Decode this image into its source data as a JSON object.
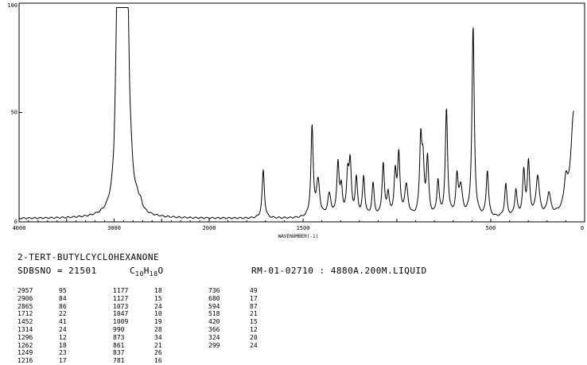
{
  "chart_data": {
    "type": "line",
    "xlabel": "WAVENUMBER(-1)",
    "ylabel": "",
    "x_ticks": [
      "4000",
      "3000",
      "2000",
      "1500",
      "500",
      "0"
    ],
    "y_ticks": [
      "100",
      "50",
      "0"
    ],
    "xlim": [
      4000,
      0
    ],
    "ylim": [
      0,
      100
    ],
    "x_axis": "piecewise linear: 4000-2000 and 2000-0 with different scales",
    "grid": false,
    "legend": "none",
    "peaks": [
      {
        "x": 2957,
        "y": 95
      },
      {
        "x": 2906,
        "y": 84
      },
      {
        "x": 2865,
        "y": 86
      },
      {
        "x": 1712,
        "y": 22
      },
      {
        "x": 1452,
        "y": 41
      },
      {
        "x": 1314,
        "y": 24
      },
      {
        "x": 1296,
        "y": 12
      },
      {
        "x": 1262,
        "y": 18
      },
      {
        "x": 1249,
        "y": 23
      },
      {
        "x": 1216,
        "y": 17
      },
      {
        "x": 1177,
        "y": 18
      },
      {
        "x": 1127,
        "y": 15
      },
      {
        "x": 1073,
        "y": 24
      },
      {
        "x": 1047,
        "y": 10
      },
      {
        "x": 1009,
        "y": 19
      },
      {
        "x": 990,
        "y": 28
      },
      {
        "x": 873,
        "y": 34
      },
      {
        "x": 861,
        "y": 21
      },
      {
        "x": 837,
        "y": 26
      },
      {
        "x": 781,
        "y": 16
      },
      {
        "x": 736,
        "y": 49
      },
      {
        "x": 680,
        "y": 17
      },
      {
        "x": 594,
        "y": 87
      },
      {
        "x": 518,
        "y": 21
      },
      {
        "x": 420,
        "y": 15
      },
      {
        "x": 366,
        "y": 12
      },
      {
        "x": 324,
        "y": 20
      },
      {
        "x": 299,
        "y": 24
      }
    ],
    "extra_shape": [
      {
        "x": 2820,
        "y": 7
      },
      {
        "x": 2760,
        "y": 4
      },
      {
        "x": 2720,
        "y": 3
      },
      {
        "x": 1420,
        "y": 16
      },
      {
        "x": 1360,
        "y": 10
      },
      {
        "x": 950,
        "y": 14
      },
      {
        "x": 660,
        "y": 13
      },
      {
        "x": 250,
        "y": 18
      },
      {
        "x": 190,
        "y": 10
      },
      {
        "x": 100,
        "y": 12
      },
      {
        "x": 60,
        "y": 32
      },
      {
        "x": 25,
        "y": 45
      },
      {
        "x": 10,
        "y": 68
      }
    ]
  },
  "compound": {
    "name": "2-TERT-BUTYLCYCLOHEXANONE",
    "sdbsno": "SDBSNO = 21501",
    "formula_c": "C",
    "formula_c_n": "10",
    "formula_h": "H",
    "formula_h_n": "18",
    "formula_o": "O",
    "conditions": "RM-01-02710 : 4880A.200M.LIQUID"
  },
  "peak_table": [
    [
      [
        "2957",
        "95"
      ],
      [
        "1177",
        "18"
      ],
      [
        "736",
        "49"
      ]
    ],
    [
      [
        "2906",
        "84"
      ],
      [
        "1127",
        "15"
      ],
      [
        "680",
        "17"
      ]
    ],
    [
      [
        "2865",
        "86"
      ],
      [
        "1073",
        "24"
      ],
      [
        "594",
        "87"
      ]
    ],
    [
      [
        "1712",
        "22"
      ],
      [
        "1047",
        "10"
      ],
      [
        "518",
        "21"
      ]
    ],
    [
      [
        "1452",
        "41"
      ],
      [
        "1009",
        "19"
      ],
      [
        "420",
        "15"
      ]
    ],
    [
      [
        "1314",
        "24"
      ],
      [
        "990",
        "28"
      ],
      [
        "366",
        "12"
      ]
    ],
    [
      [
        "1296",
        "12"
      ],
      [
        "873",
        "34"
      ],
      [
        "324",
        "20"
      ]
    ],
    [
      [
        "1262",
        "18"
      ],
      [
        "861",
        "21"
      ],
      [
        "299",
        "24"
      ]
    ],
    [
      [
        "1249",
        "23"
      ],
      [
        "837",
        "26"
      ],
      null
    ],
    [
      [
        "1216",
        "17"
      ],
      [
        "781",
        "16"
      ],
      null
    ]
  ]
}
